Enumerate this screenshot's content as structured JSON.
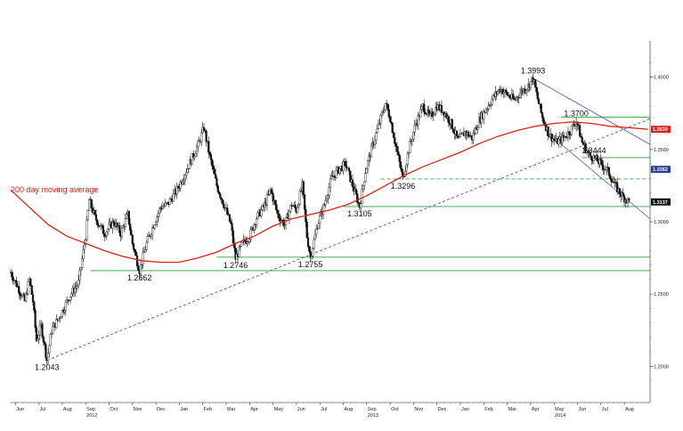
{
  "chart_data": {
    "type": "candlestick",
    "title": "",
    "xlabel": "",
    "ylabel": "",
    "ylim": [
      1.175,
      1.425
    ],
    "grid": false,
    "y_ticks": [
      "1.4000",
      "1.3500",
      "1.3000",
      "1.2500",
      "1.2000"
    ],
    "x_ticks": [
      {
        "label": "Jun",
        "t": 5.0
      },
      {
        "label": "Jul",
        "t": 6.0
      },
      {
        "label": "Aug",
        "t": 7.0
      },
      {
        "label": "Sep",
        "t": 8.0
      },
      {
        "label": "Oct",
        "t": 9.0
      },
      {
        "label": "Nov",
        "t": 10.0
      },
      {
        "label": "Dec",
        "t": 11.0
      },
      {
        "label": "Jan",
        "t": 12.0
      },
      {
        "label": "Feb",
        "t": 13.0
      },
      {
        "label": "Mar",
        "t": 14.0
      },
      {
        "label": "Apr",
        "t": 15.0
      },
      {
        "label": "May",
        "t": 16.0
      },
      {
        "label": "Jun",
        "t": 17.0
      },
      {
        "label": "Jul",
        "t": 18.0
      },
      {
        "label": "Aug",
        "t": 19.0
      },
      {
        "label": "Sep",
        "t": 20.0
      },
      {
        "label": "Oct",
        "t": 21.0
      },
      {
        "label": "Nov",
        "t": 22.0
      },
      {
        "label": "Dec",
        "t": 23.0
      },
      {
        "label": "Jan",
        "t": 24.0
      },
      {
        "label": "Feb",
        "t": 25.0
      },
      {
        "label": "Mar",
        "t": 26.0
      },
      {
        "label": "Apr",
        "t": 27.0
      },
      {
        "label": "May",
        "t": 28.0
      },
      {
        "label": "Jun",
        "t": 29.0
      },
      {
        "label": "Jul",
        "t": 30.0
      },
      {
        "label": "Aug",
        "t": 31.0
      }
    ],
    "year_labels": [
      {
        "label": "2012",
        "t": 8.0
      },
      {
        "label": "2013",
        "t": 20.0
      },
      {
        "label": "2014",
        "t": 28.0
      }
    ],
    "x_range": [
      4.8,
      32.1
    ],
    "price_path": [
      [
        4.8,
        1.265
      ],
      [
        5.1,
        1.255
      ],
      [
        5.4,
        1.245
      ],
      [
        5.6,
        1.26
      ],
      [
        5.75,
        1.245
      ],
      [
        5.9,
        1.218
      ],
      [
        6.1,
        1.228
      ],
      [
        6.35,
        1.2043
      ],
      [
        6.55,
        1.225
      ],
      [
        6.9,
        1.235
      ],
      [
        7.3,
        1.248
      ],
      [
        7.7,
        1.258
      ],
      [
        8.0,
        1.29
      ],
      [
        8.15,
        1.315
      ],
      [
        8.4,
        1.303
      ],
      [
        8.8,
        1.292
      ],
      [
        9.2,
        1.3
      ],
      [
        9.5,
        1.292
      ],
      [
        9.8,
        1.305
      ],
      [
        10.0,
        1.285
      ],
      [
        10.3,
        1.2662
      ],
      [
        10.6,
        1.285
      ],
      [
        10.9,
        1.298
      ],
      [
        11.2,
        1.31
      ],
      [
        11.5,
        1.312
      ],
      [
        11.9,
        1.322
      ],
      [
        12.2,
        1.332
      ],
      [
        12.6,
        1.346
      ],
      [
        12.85,
        1.355
      ],
      [
        13.05,
        1.365
      ],
      [
        13.3,
        1.345
      ],
      [
        13.6,
        1.325
      ],
      [
        13.9,
        1.312
      ],
      [
        14.2,
        1.298
      ],
      [
        14.4,
        1.2746
      ],
      [
        14.7,
        1.285
      ],
      [
        15.0,
        1.29
      ],
      [
        15.3,
        1.303
      ],
      [
        15.6,
        1.31
      ],
      [
        15.9,
        1.322
      ],
      [
        16.2,
        1.305
      ],
      [
        16.5,
        1.298
      ],
      [
        16.8,
        1.312
      ],
      [
        17.0,
        1.308
      ],
      [
        17.25,
        1.325
      ],
      [
        17.45,
        1.29
      ],
      [
        17.6,
        1.2755
      ],
      [
        17.9,
        1.298
      ],
      [
        18.2,
        1.312
      ],
      [
        18.5,
        1.33
      ],
      [
        18.8,
        1.336
      ],
      [
        19.1,
        1.34
      ],
      [
        19.4,
        1.325
      ],
      [
        19.7,
        1.3105
      ],
      [
        19.95,
        1.335
      ],
      [
        20.2,
        1.35
      ],
      [
        20.5,
        1.366
      ],
      [
        20.8,
        1.382
      ],
      [
        21.0,
        1.372
      ],
      [
        21.3,
        1.348
      ],
      [
        21.55,
        1.3296
      ],
      [
        21.8,
        1.35
      ],
      [
        22.1,
        1.368
      ],
      [
        22.4,
        1.38
      ],
      [
        22.7,
        1.372
      ],
      [
        23.0,
        1.38
      ],
      [
        23.3,
        1.376
      ],
      [
        23.6,
        1.368
      ],
      [
        23.9,
        1.356
      ],
      [
        24.2,
        1.362
      ],
      [
        24.5,
        1.358
      ],
      [
        24.8,
        1.37
      ],
      [
        25.1,
        1.378
      ],
      [
        25.4,
        1.386
      ],
      [
        25.7,
        1.392
      ],
      [
        26.0,
        1.388
      ],
      [
        26.3,
        1.384
      ],
      [
        26.6,
        1.39
      ],
      [
        26.9,
        1.394
      ],
      [
        27.1,
        1.3993
      ],
      [
        27.3,
        1.385
      ],
      [
        27.5,
        1.372
      ],
      [
        27.8,
        1.36
      ],
      [
        28.1,
        1.355
      ],
      [
        28.4,
        1.358
      ],
      [
        28.7,
        1.363
      ],
      [
        28.95,
        1.37
      ],
      [
        29.2,
        1.355
      ],
      [
        29.5,
        1.346
      ],
      [
        29.7,
        1.3444
      ],
      [
        30.0,
        1.34
      ],
      [
        30.3,
        1.335
      ],
      [
        30.6,
        1.325
      ],
      [
        30.9,
        1.318
      ],
      [
        31.2,
        1.3137
      ]
    ],
    "moving_average": {
      "name": "200 day moving average",
      "color": "#e0211b",
      "points": [
        [
          4.8,
          1.322
        ],
        [
          5.6,
          1.31
        ],
        [
          6.4,
          1.298
        ],
        [
          7.2,
          1.29
        ],
        [
          8.0,
          1.285
        ],
        [
          8.8,
          1.28
        ],
        [
          9.6,
          1.276
        ],
        [
          10.4,
          1.273
        ],
        [
          11.2,
          1.272
        ],
        [
          12.0,
          1.272
        ],
        [
          12.8,
          1.275
        ],
        [
          13.6,
          1.279
        ],
        [
          14.4,
          1.285
        ],
        [
          15.2,
          1.29
        ],
        [
          16.0,
          1.297
        ],
        [
          16.8,
          1.302
        ],
        [
          17.6,
          1.305
        ],
        [
          18.4,
          1.308
        ],
        [
          19.2,
          1.312
        ],
        [
          20.0,
          1.318
        ],
        [
          20.8,
          1.325
        ],
        [
          21.6,
          1.332
        ],
        [
          22.4,
          1.338
        ],
        [
          23.2,
          1.343
        ],
        [
          24.0,
          1.348
        ],
        [
          24.8,
          1.354
        ],
        [
          25.6,
          1.359
        ],
        [
          26.4,
          1.363
        ],
        [
          27.2,
          1.366
        ],
        [
          28.0,
          1.368
        ],
        [
          28.8,
          1.369
        ],
        [
          29.6,
          1.368
        ],
        [
          30.4,
          1.366
        ],
        [
          31.2,
          1.365
        ],
        [
          32.0,
          1.3639
        ]
      ]
    },
    "level_labels": [
      {
        "label": "1.2043",
        "t": 6.35,
        "v": 1.2043,
        "pos": "below"
      },
      {
        "label": "1.2662",
        "t": 10.3,
        "v": 1.2662,
        "pos": "below"
      },
      {
        "label": "1.2746",
        "t": 14.4,
        "v": 1.2746,
        "pos": "below"
      },
      {
        "label": "1.2755",
        "t": 17.6,
        "v": 1.2755,
        "pos": "below"
      },
      {
        "label": "1.3105",
        "t": 19.7,
        "v": 1.3105,
        "pos": "below"
      },
      {
        "label": "1.3296",
        "t": 21.55,
        "v": 1.3296,
        "pos": "below"
      },
      {
        "label": "1.3993",
        "t": 27.1,
        "v": 1.3993,
        "pos": "above"
      },
      {
        "label": "1.3700",
        "t": 28.95,
        "v": 1.37,
        "pos": "above"
      },
      {
        "label": "1.3444",
        "t": 29.7,
        "v": 1.3444,
        "pos": "above"
      }
    ],
    "horizontal_lines": [
      {
        "v": 1.2662,
        "t_start": 8.2,
        "t_end": 32.1,
        "style": "solid",
        "color": "#2e9e48"
      },
      {
        "v": 1.2755,
        "t_start": 13.6,
        "t_end": 32.1,
        "style": "solid",
        "color": "#2e9e48"
      },
      {
        "v": 1.3105,
        "t_start": 19.0,
        "t_end": 32.1,
        "style": "solid",
        "color": "#2e9e48"
      },
      {
        "v": 1.3296,
        "t_start": 20.6,
        "t_end": 32.1,
        "style": "dashed",
        "color": "#2e9e48"
      },
      {
        "v": 1.3444,
        "t_start": 29.2,
        "t_end": 32.1,
        "style": "solid",
        "color": "#2e9e48"
      },
      {
        "v": 1.3722,
        "t_start": 28.3,
        "t_end": 32.1,
        "style": "solid",
        "color": "#2e9e48"
      }
    ],
    "trend_lines": [
      {
        "from": [
          6.35,
          1.2043
        ],
        "to": [
          32.1,
          1.3712
        ],
        "style": "dashed",
        "color": "#3b3fa8"
      },
      {
        "from": [
          27.1,
          1.3993
        ],
        "to": [
          32.1,
          1.3535
        ],
        "style": "solid",
        "color": "#4a55b5"
      },
      {
        "from": [
          28.2,
          1.355
        ],
        "to": [
          32.1,
          1.302
        ],
        "style": "solid",
        "color": "#4a55b5"
      }
    ],
    "axis_markers": [
      {
        "label": "1.3639",
        "v": 1.3639,
        "color": "#e0211b",
        "text_color": "#ffffff"
      },
      {
        "label": "1.3362",
        "v": 1.3362,
        "color": "#2a3f96",
        "text_color": "#ffffff"
      },
      {
        "label": "1.3137",
        "v": 1.3137,
        "color": "#111111",
        "text_color": "#ffffff"
      }
    ],
    "annotations": [
      "200 day moving average"
    ]
  }
}
